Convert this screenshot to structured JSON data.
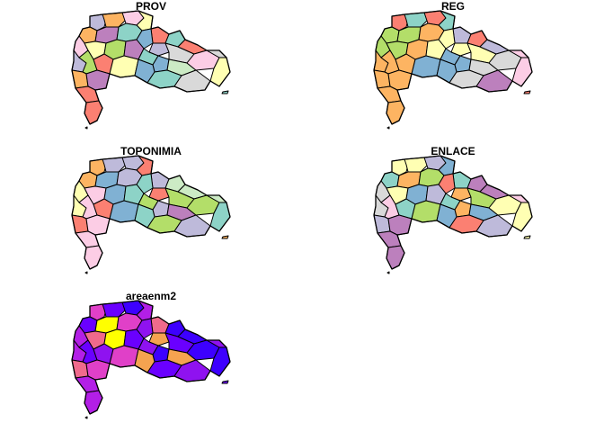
{
  "panels": [
    {
      "id": "prov",
      "title": "PROV",
      "palette": [
        "#8DD3C7",
        "#FFFFB3",
        "#BEBADA",
        "#FB8072",
        "#80B1D3",
        "#FDB462",
        "#B3DE69",
        "#FCCDE5",
        "#D9D9D9",
        "#BC80BD",
        "#CCEBC5"
      ]
    },
    {
      "id": "reg",
      "title": "REG",
      "palette": [
        "#FB8072",
        "#8DD3C7",
        "#B3DE69",
        "#FDB462",
        "#FFFFB3",
        "#80B1D3",
        "#D9D9D9",
        "#FCCDE5",
        "#BEBADA",
        "#BC80BD"
      ]
    },
    {
      "id": "toponimia",
      "title": "TOPONIMIA",
      "palette": [
        "#FDB462",
        "#BEBADA",
        "#80B1D3",
        "#FFFFB3",
        "#B3DE69",
        "#FB8072",
        "#8DD3C7",
        "#FCCDE5",
        "#BC80BD",
        "#CCEBC5"
      ]
    },
    {
      "id": "enlace",
      "title": "ENLACE",
      "palette": [
        "#FFFFB3",
        "#BEBADA",
        "#B3DE69",
        "#FB8072",
        "#80B1D3",
        "#FDB462",
        "#8DD3C7",
        "#FCCDE5",
        "#BC80BD",
        "#D9D9D9"
      ]
    },
    {
      "id": "areaenm2",
      "title": "areaenm2",
      "palette": [
        "#6A00FF",
        "#B31FE6",
        "#E040C8",
        "#F06A8C",
        "#F5A350",
        "#FFFF00",
        "#3D00FF",
        "#8F12F0"
      ]
    }
  ]
}
